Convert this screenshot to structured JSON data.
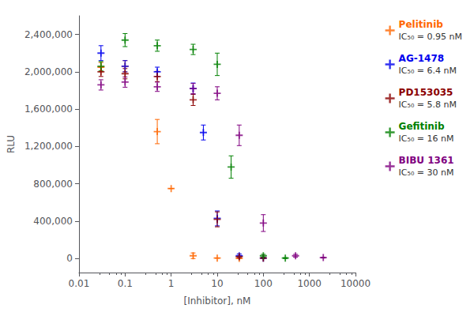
{
  "chart_data": {
    "type": "scatter",
    "xlabel": "[Inhibitor], nM",
    "ylabel": "RLU",
    "log": "x",
    "grid": false,
    "legend": "right",
    "marker": "plus",
    "xlim": [
      0.01,
      10000
    ],
    "xticks": [
      0.01,
      0.1,
      1,
      10,
      100,
      1000,
      10000
    ],
    "ylim": [
      -150000,
      2600000
    ],
    "yticks": [
      0,
      {
        "value": 400000,
        "label": "400,000"
      },
      {
        "value": 800000,
        "label": "800,000"
      },
      {
        "value": 1200000,
        "label": "1,200,000"
      },
      {
        "value": 1600000,
        "label": "1,600,000"
      },
      {
        "value": 2000000,
        "label": "2,000,000"
      },
      {
        "value": 2400000,
        "label": "2,400,000"
      }
    ],
    "series": [
      {
        "name": "Pelitinib",
        "label": "IC₅₀ = 0.95 nM",
        "color": "#FF6600",
        "x": [
          0.03,
          0.1,
          0.5,
          1.0,
          3.0,
          10.0,
          30.0
        ],
        "values": [
          2050000,
          2060000,
          1360000,
          750000,
          30000,
          5000,
          2000
        ],
        "errors": [
          50000,
          60000,
          130000,
          0,
          30000,
          0,
          0
        ]
      },
      {
        "name": "AG-1478",
        "label": "IC₅₀ = 6.4 nM",
        "color": "#0000EE",
        "x": [
          0.03,
          0.1,
          0.5,
          3.0,
          5.0,
          10.0,
          30.0,
          100.0
        ],
        "values": [
          2200000,
          2060000,
          2000000,
          1820000,
          1350000,
          430000,
          30000,
          5000
        ],
        "errors": [
          80000,
          60000,
          50000,
          60000,
          80000,
          80000,
          20000,
          5000
        ]
      },
      {
        "name": "PD153035",
        "label": "IC₅₀ = 5.8 nM",
        "color": "#8B0000",
        "x": [
          0.03,
          0.1,
          0.5,
          3.0,
          10.0,
          30.0,
          100.0
        ],
        "values": [
          2000000,
          1980000,
          1950000,
          1700000,
          420000,
          20000,
          5000
        ],
        "errors": [
          50000,
          55000,
          55000,
          60000,
          80000,
          10000,
          5000
        ]
      },
      {
        "name": "Gefitinib",
        "label": "IC₅₀ = 16 nM",
        "color": "#008000",
        "x": [
          0.03,
          0.1,
          0.5,
          3.0,
          10.0,
          20.0,
          100.0,
          300.0
        ],
        "values": [
          2060000,
          2340000,
          2280000,
          2240000,
          2080000,
          980000,
          30000,
          5000
        ],
        "errors": [
          50000,
          70000,
          60000,
          55000,
          120000,
          120000,
          15000,
          5000
        ]
      },
      {
        "name": "BIBU 1361",
        "label": "IC₅₀ = 30 nM",
        "color": "#800080",
        "x": [
          0.03,
          0.1,
          0.5,
          3.0,
          10.0,
          30.0,
          100.0,
          500.0,
          2000.0
        ],
        "values": [
          1860000,
          1890000,
          1840000,
          1820000,
          1770000,
          1320000,
          380000,
          30000,
          10000
        ],
        "errors": [
          55000,
          55000,
          50000,
          55000,
          70000,
          110000,
          90000,
          15000,
          5000
        ]
      }
    ]
  }
}
